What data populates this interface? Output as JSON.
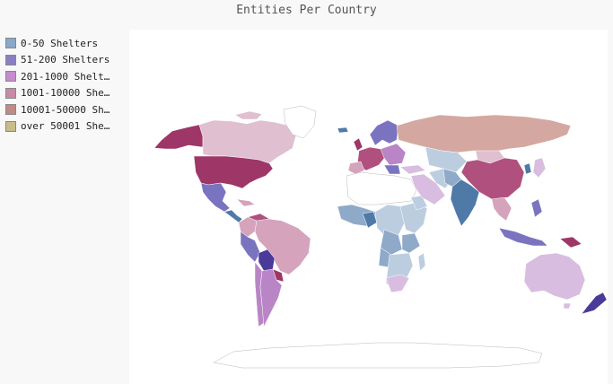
{
  "title": "Entities Per Country",
  "legend": [
    {
      "label": "0-50 Shelters",
      "color": "#8aa8c8"
    },
    {
      "label": "51-200 Shelters",
      "color": "#8b7fc4"
    },
    {
      "label": "201-1000 Shelt…",
      "color": "#c48ccd"
    },
    {
      "label": "1001-10000 She…",
      "color": "#c98aa8"
    },
    {
      "label": "10001-50000 Sh…",
      "color": "#c08a86"
    },
    {
      "label": "over 50001 She…",
      "color": "#c8bc88"
    }
  ],
  "palette": {
    "light_blue": "#bccde0",
    "mid_blue": "#8fa9c9",
    "steel_blue": "#4f7aa8",
    "periwinkle": "#7a74c0",
    "indigo": "#4b3a9a",
    "lilac": "#d9bde0",
    "orchid": "#b985c6",
    "pink": "#dfbfd0",
    "rose": "#d5a3bb",
    "magenta": "#b0507e",
    "maroon": "#9e3667",
    "tan": "#d4a8a0"
  }
}
